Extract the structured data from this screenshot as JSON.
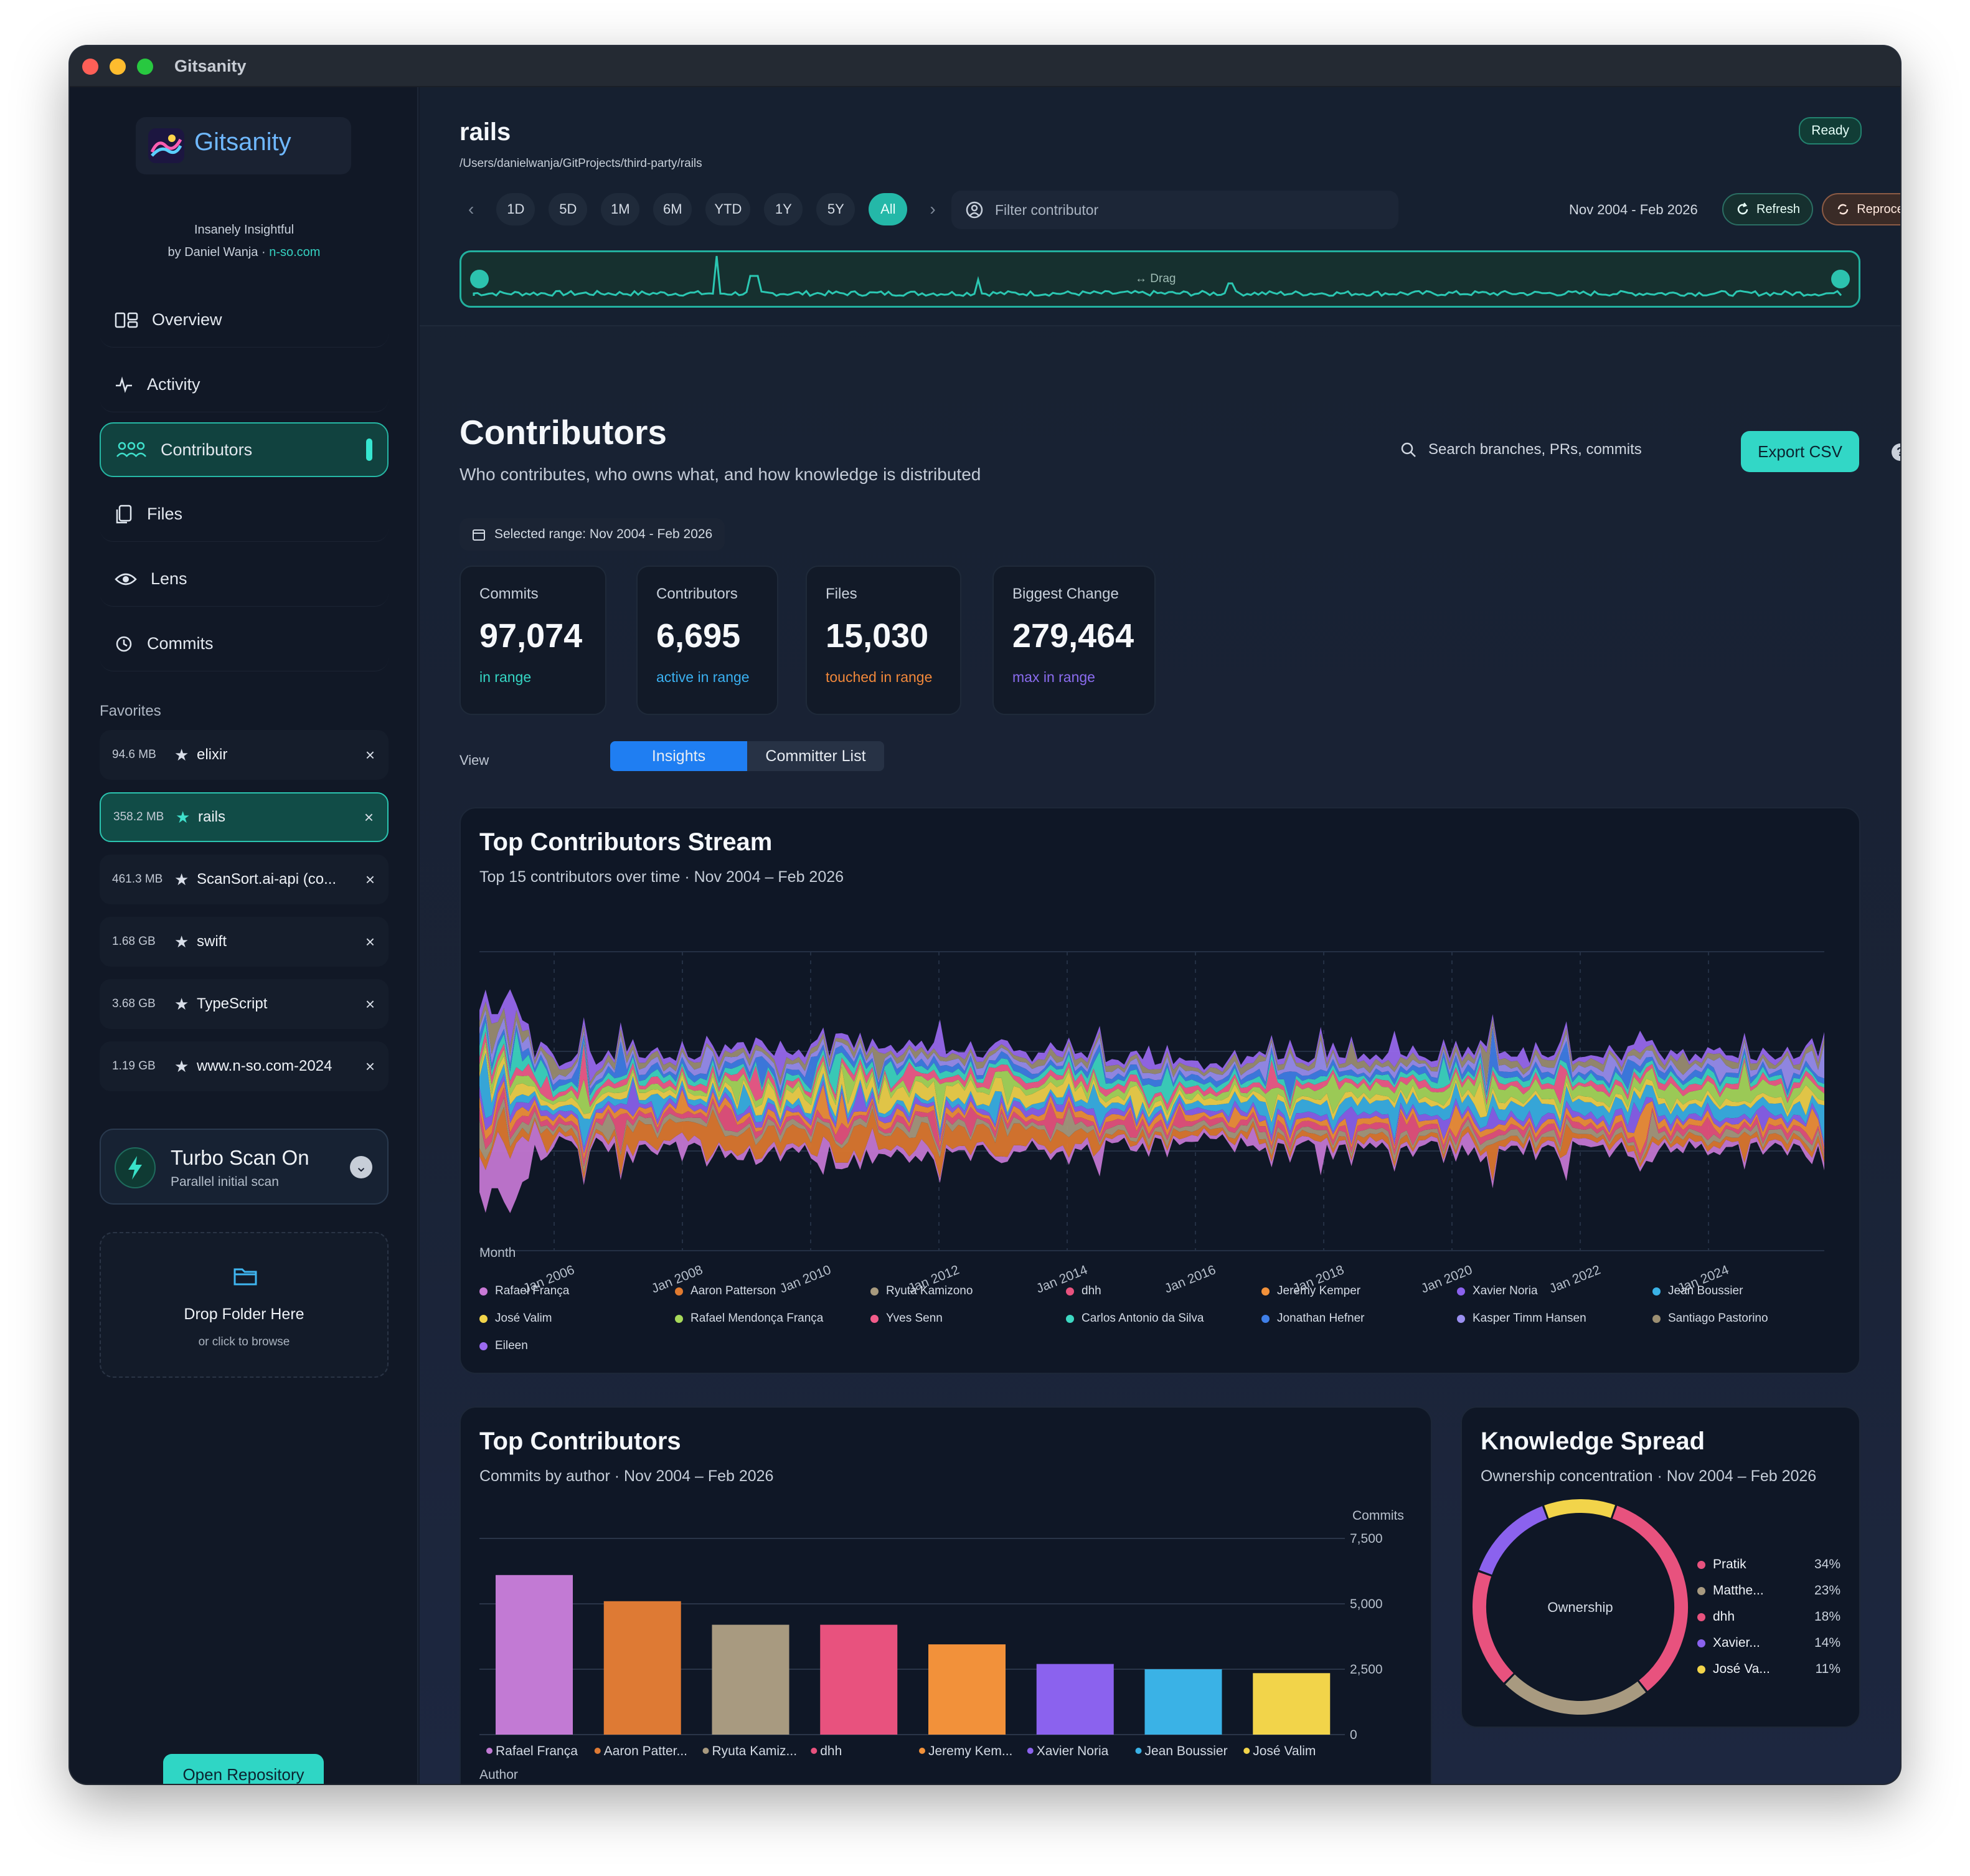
{
  "window": {
    "title": "Gitsanity"
  },
  "sidebar": {
    "brand": "Gitsanity",
    "tagline": "Insanely Insightful",
    "byline": "by Daniel Wanja · ",
    "byline_link": "n-so.com",
    "nav": [
      {
        "label": "Overview",
        "icon": "overview-icon"
      },
      {
        "label": "Activity",
        "icon": "pulse-icon"
      },
      {
        "label": "Contributors",
        "icon": "people-icon",
        "active": true
      },
      {
        "label": "Files",
        "icon": "files-icon"
      },
      {
        "label": "Lens",
        "icon": "eye-icon"
      },
      {
        "label": "Commits",
        "icon": "history-icon"
      }
    ],
    "favorites_heading": "Favorites",
    "favorites": [
      {
        "size": "94.6 MB",
        "name": "elixir"
      },
      {
        "size": "358.2 MB",
        "name": "rails",
        "active": true
      },
      {
        "size": "461.3 MB",
        "name": "ScanSort.ai-api (co..."
      },
      {
        "size": "1.68 GB",
        "name": "swift"
      },
      {
        "size": "3.68 GB",
        "name": "TypeScript"
      },
      {
        "size": "1.19 GB",
        "name": "www.n-so.com-2024"
      }
    ],
    "turbo": {
      "title": "Turbo Scan On",
      "subtitle": "Parallel initial scan"
    },
    "drop": {
      "title": "Drop Folder Here",
      "subtitle": "or click to browse"
    },
    "open_button": "Open Repository"
  },
  "header": {
    "repo": "rails",
    "path": "/Users/danielwanja/GitProjects/third-party/rails",
    "status": "Ready",
    "periods": [
      "1D",
      "5D",
      "1M",
      "6M",
      "YTD",
      "1Y",
      "5Y",
      "All"
    ],
    "active_period": "All",
    "filter_placeholder": "Filter contributor",
    "range": "Nov 2004 - Feb 2026",
    "refresh": "Refresh",
    "reprocess": "Reprocess",
    "timeline_hint": "Drag"
  },
  "page": {
    "title": "Contributors",
    "subtitle": "Who contributes, who owns what, and how knowledge is distributed",
    "search_placeholder": "Search branches, PRs, commits",
    "export": "Export CSV",
    "help": "?",
    "selected_range": "Selected range: Nov 2004 - Feb 2026"
  },
  "stats": [
    {
      "label": "Commits",
      "value": "97,074",
      "note": "in range",
      "color": "#35d6c4"
    },
    {
      "label": "Contributors",
      "value": "6,695",
      "note": "active in range",
      "color": "#3ab0f0"
    },
    {
      "label": "Files",
      "value": "15,030",
      "note": "touched in range",
      "color": "#f0873a"
    },
    {
      "label": "Biggest Change",
      "value": "279,464",
      "note": "max in range",
      "color": "#8b6cf0"
    }
  ],
  "view": {
    "label": "View",
    "tabs": [
      "Insights",
      "Committer List"
    ],
    "active": "Insights"
  },
  "stream": {
    "title": "Top Contributors Stream",
    "subtitle": "Top 15 contributors over time · Nov 2004 – Feb 2026",
    "xlabel": "Month",
    "x_ticks": [
      "Jan 2006",
      "Jan 2008",
      "Jan 2010",
      "Jan 2012",
      "Jan 2014",
      "Jan 2016",
      "Jan 2018",
      "Jan 2020",
      "Jan 2022",
      "Jan 2024"
    ],
    "legend": [
      {
        "name": "Rafael França",
        "color": "#c879d6"
      },
      {
        "name": "Aaron Patterson",
        "color": "#e07a2f"
      },
      {
        "name": "Ryuta Kamizono",
        "color": "#a89a7e"
      },
      {
        "name": "dhh",
        "color": "#e8527e"
      },
      {
        "name": "Jeremy Kemper",
        "color": "#f2913a"
      },
      {
        "name": "Xavier Noria",
        "color": "#8b62ee"
      },
      {
        "name": "Jean Boussier",
        "color": "#3ab2e6"
      },
      {
        "name": "José Valim",
        "color": "#f2d44a"
      },
      {
        "name": "Rafael Mendonça França",
        "color": "#a7d95a"
      },
      {
        "name": "Yves Senn",
        "color": "#f25c8a"
      },
      {
        "name": "Carlos Antonio da Silva",
        "color": "#3dd8c2"
      },
      {
        "name": "Jonathan Hefner",
        "color": "#3f7fe8"
      },
      {
        "name": "Kasper Timm Hansen",
        "color": "#9a8ff0"
      },
      {
        "name": "Santiago Pastorino",
        "color": "#9c8f72"
      },
      {
        "name": "Eileen",
        "color": "#9a6af0"
      }
    ]
  },
  "chart_data": [
    {
      "type": "bar",
      "title": "Top Contributors",
      "subtitle": "Commits by author · Nov 2004 – Feb 2026",
      "xlabel": "Author",
      "ylabel": "Commits",
      "ylim": [
        0,
        7500
      ],
      "y_ticks": [
        "7,500",
        "5,000",
        "2,500",
        "0"
      ],
      "categories": [
        "Rafael França",
        "Aaron Patter...",
        "Ryuta Kamiz...",
        "dhh",
        "Jeremy Kem...",
        "Xavier Noria",
        "Jean Boussier",
        "José Valim"
      ],
      "values": [
        6100,
        5100,
        4200,
        4200,
        3450,
        2700,
        2500,
        2350
      ],
      "colors": [
        "#c27ad4",
        "#de7a34",
        "#a89a80",
        "#e8527e",
        "#f2913a",
        "#8b62ee",
        "#3ab2e6",
        "#f2d44a"
      ]
    },
    {
      "type": "pie",
      "title": "Knowledge Spread",
      "subtitle": "Ownership concentration · Nov 2004 – Feb 2026",
      "center_label": "Ownership",
      "labels": [
        "Pratik",
        "Matthe...",
        "dhh",
        "Xavier...",
        "José Va..."
      ],
      "value_labels": [
        "34%",
        "23%",
        "18%",
        "14%",
        "11%"
      ],
      "values": [
        34,
        23,
        18,
        14,
        11
      ],
      "colors": [
        "#e8527e",
        "#a89a80",
        "#e8527e",
        "#8b62ee",
        "#f2d44a"
      ]
    }
  ]
}
